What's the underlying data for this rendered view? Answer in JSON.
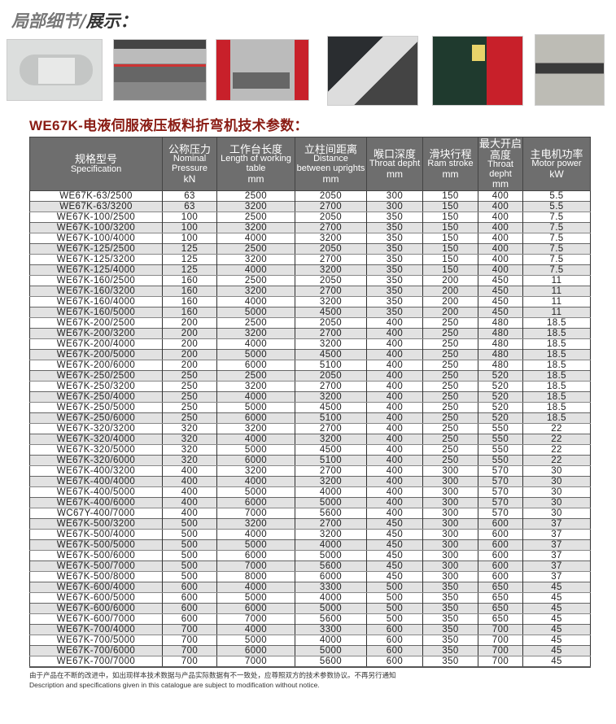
{
  "section_heading": {
    "light": "局部细节/",
    "dark": "展示："
  },
  "photos": [
    "detail-photo-1",
    "detail-photo-2",
    "detail-photo-3",
    "detail-photo-4",
    "detail-photo-5",
    "detail-photo-6"
  ],
  "table_title": "WE67K-电液伺服液压板料折弯机技术参数：",
  "columns": [
    {
      "cn": "规格型号",
      "en": "Specification",
      "unit": ""
    },
    {
      "cn": "公称压力",
      "en": "Nominal Pressure",
      "unit": "kN"
    },
    {
      "cn": "工作台长度",
      "en": "Length of working table",
      "unit": "mm"
    },
    {
      "cn": "立柱间距离",
      "en": "Distance between uprights",
      "unit": "mm"
    },
    {
      "cn": "喉口深度",
      "en": "Throat depht",
      "unit": "mm"
    },
    {
      "cn": "滑块行程",
      "en": "Ram stroke",
      "unit": "mm"
    },
    {
      "cn": "最大开启高度",
      "en": "Throat depht",
      "unit": "mm"
    },
    {
      "cn": "主电机功率",
      "en": "Motor power",
      "unit": "kW"
    }
  ],
  "rows": [
    [
      "WE67K-63/2500",
      "63",
      "2500",
      "2050",
      "300",
      "150",
      "400",
      "5.5"
    ],
    [
      "WE67K-63/3200",
      "63",
      "3200",
      "2700",
      "300",
      "150",
      "400",
      "5.5"
    ],
    [
      "WE67K-100/2500",
      "100",
      "2500",
      "2050",
      "350",
      "150",
      "400",
      "7.5"
    ],
    [
      "WE67K-100/3200",
      "100",
      "3200",
      "2700",
      "350",
      "150",
      "400",
      "7.5"
    ],
    [
      "WE67K-100/4000",
      "100",
      "4000",
      "3200",
      "350",
      "150",
      "400",
      "7.5"
    ],
    [
      "WE67K-125/2500",
      "125",
      "2500",
      "2050",
      "350",
      "150",
      "400",
      "7.5"
    ],
    [
      "WE67K-125/3200",
      "125",
      "3200",
      "2700",
      "350",
      "150",
      "400",
      "7.5"
    ],
    [
      "WE67K-125/4000",
      "125",
      "4000",
      "3200",
      "350",
      "150",
      "400",
      "7.5"
    ],
    [
      "WE67K-160/2500",
      "160",
      "2500",
      "2050",
      "350",
      "200",
      "450",
      "11"
    ],
    [
      "WE67K-160/3200",
      "160",
      "3200",
      "2700",
      "350",
      "200",
      "450",
      "11"
    ],
    [
      "WE67K-160/4000",
      "160",
      "4000",
      "3200",
      "350",
      "200",
      "450",
      "11"
    ],
    [
      "WE67K-160/5000",
      "160",
      "5000",
      "4500",
      "350",
      "200",
      "450",
      "11"
    ],
    [
      "WE67K-200/2500",
      "200",
      "2500",
      "2050",
      "400",
      "250",
      "480",
      "18.5"
    ],
    [
      "WE67K-200/3200",
      "200",
      "3200",
      "2700",
      "400",
      "250",
      "480",
      "18.5"
    ],
    [
      "WE67K-200/4000",
      "200",
      "4000",
      "3200",
      "400",
      "250",
      "480",
      "18.5"
    ],
    [
      "WE67K-200/5000",
      "200",
      "5000",
      "4500",
      "400",
      "250",
      "480",
      "18.5"
    ],
    [
      "WE67K-200/6000",
      "200",
      "6000",
      "5100",
      "400",
      "250",
      "480",
      "18.5"
    ],
    [
      "WE67K-250/2500",
      "250",
      "2500",
      "2050",
      "400",
      "250",
      "520",
      "18.5"
    ],
    [
      "WE67K-250/3200",
      "250",
      "3200",
      "2700",
      "400",
      "250",
      "520",
      "18.5"
    ],
    [
      "WE67K-250/4000",
      "250",
      "4000",
      "3200",
      "400",
      "250",
      "520",
      "18.5"
    ],
    [
      "WE67K-250/5000",
      "250",
      "5000",
      "4500",
      "400",
      "250",
      "520",
      "18.5"
    ],
    [
      "WE67K-250/6000",
      "250",
      "6000",
      "5100",
      "400",
      "250",
      "520",
      "18.5"
    ],
    [
      "WE67K-320/3200",
      "320",
      "3200",
      "2700",
      "400",
      "250",
      "550",
      "22"
    ],
    [
      "WE67K-320/4000",
      "320",
      "4000",
      "3200",
      "400",
      "250",
      "550",
      "22"
    ],
    [
      "WE67K-320/5000",
      "320",
      "5000",
      "4500",
      "400",
      "250",
      "550",
      "22"
    ],
    [
      "WE67K-320/6000",
      "320",
      "6000",
      "5100",
      "400",
      "250",
      "550",
      "22"
    ],
    [
      "WE67K-400/3200",
      "400",
      "3200",
      "2700",
      "400",
      "300",
      "570",
      "30"
    ],
    [
      "WE67K-400/4000",
      "400",
      "4000",
      "3200",
      "400",
      "300",
      "570",
      "30"
    ],
    [
      "WE67K-400/5000",
      "400",
      "5000",
      "4000",
      "400",
      "300",
      "570",
      "30"
    ],
    [
      "WE67K-400/6000",
      "400",
      "6000",
      "5000",
      "400",
      "300",
      "570",
      "30"
    ],
    [
      "WC67Y-400/7000",
      "400",
      "7000",
      "5600",
      "400",
      "300",
      "570",
      "30"
    ],
    [
      "WE67K-500/3200",
      "500",
      "3200",
      "2700",
      "450",
      "300",
      "600",
      "37"
    ],
    [
      "WE67K-500/4000",
      "500",
      "4000",
      "3200",
      "450",
      "300",
      "600",
      "37"
    ],
    [
      "WE67K-500/5000",
      "500",
      "5000",
      "4000",
      "450",
      "300",
      "600",
      "37"
    ],
    [
      "WE67K-500/6000",
      "500",
      "6000",
      "5000",
      "450",
      "300",
      "600",
      "37"
    ],
    [
      "WE67K-500/7000",
      "500",
      "7000",
      "5600",
      "450",
      "300",
      "600",
      "37"
    ],
    [
      "WE67K-500/8000",
      "500",
      "8000",
      "6000",
      "450",
      "300",
      "600",
      "37"
    ],
    [
      "WE67K-600/4000",
      "600",
      "4000",
      "3300",
      "500",
      "350",
      "650",
      "45"
    ],
    [
      "WE67K-600/5000",
      "600",
      "5000",
      "4000",
      "500",
      "350",
      "650",
      "45"
    ],
    [
      "WE67K-600/6000",
      "600",
      "6000",
      "5000",
      "500",
      "350",
      "650",
      "45"
    ],
    [
      "WE67K-600/7000",
      "600",
      "7000",
      "5600",
      "500",
      "350",
      "650",
      "45"
    ],
    [
      "WE67K-700/4000",
      "700",
      "4000",
      "3300",
      "600",
      "350",
      "700",
      "45"
    ],
    [
      "WE67K-700/5000",
      "700",
      "5000",
      "4000",
      "600",
      "350",
      "700",
      "45"
    ],
    [
      "WE67K-700/6000",
      "700",
      "6000",
      "5000",
      "600",
      "350",
      "700",
      "45"
    ],
    [
      "WE67K-700/7000",
      "700",
      "7000",
      "5600",
      "600",
      "350",
      "700",
      "45"
    ]
  ],
  "footnote": {
    "cn": "由于产品在不断的改进中，如出现样本技术数据与产品实际数据有不一致处，应尊照双方的技术参数协议。不再另行通知",
    "en": "Description and specifications given in this catalogue are subject to modification without notice."
  }
}
